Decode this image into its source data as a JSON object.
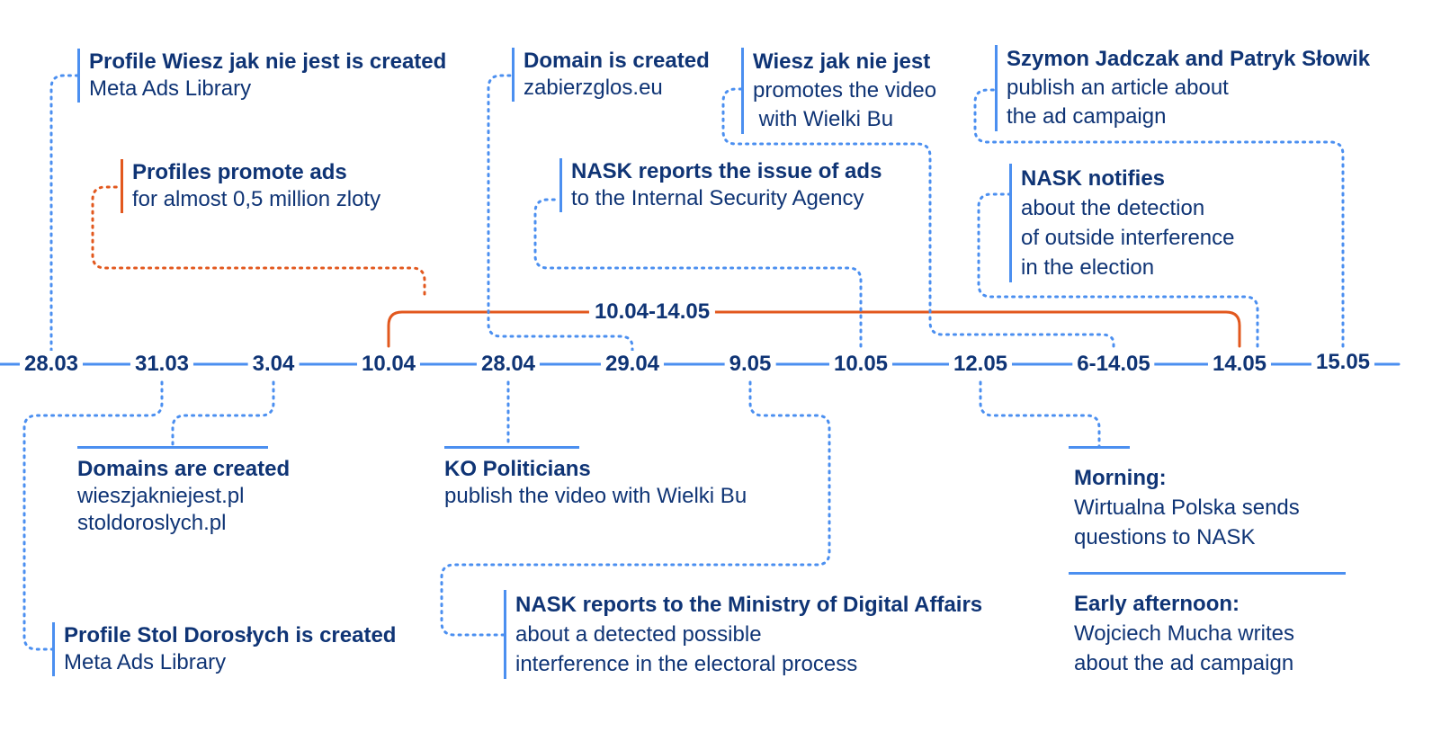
{
  "colors": {
    "navy": "#0f3475",
    "blue": "#4b8ff0",
    "orange": "#e2581e"
  },
  "timeline": {
    "range_label": "10.04-14.05",
    "dates": [
      "28.03",
      "31.03",
      "3.04",
      "10.04",
      "28.04",
      "29.04",
      "9.05",
      "10.05",
      "12.05",
      "6-14.05",
      "14.05",
      "15.05"
    ]
  },
  "events": {
    "profile_wiesz": {
      "title": "Profile Wiesz jak nie jest is created",
      "lines": [
        "Meta Ads Library"
      ]
    },
    "profiles_ads": {
      "title": "Profiles promote ads",
      "lines": [
        "for almost 0,5 million zloty"
      ]
    },
    "domain_created": {
      "title": "Domain is created",
      "lines": [
        "zabierzglos.eu"
      ]
    },
    "wiesz_video": {
      "title": "Wiesz jak nie jest",
      "lines": [
        "promotes the video",
        " with Wielki Bu"
      ]
    },
    "szymon": {
      "title": "Szymon Jadczak and Patryk Słowik",
      "lines": [
        "publish an article about",
        "the ad campaign"
      ]
    },
    "nask_isa": {
      "title": "NASK reports the issue of ads",
      "lines": [
        "to the Internal Security Agency"
      ]
    },
    "nask_notifies": {
      "title": "NASK notifies",
      "lines": [
        "about the detection",
        "of outside interference",
        "in the election"
      ]
    },
    "domains_created": {
      "title": "Domains are created",
      "lines": [
        "wieszjakniejest.pl",
        "stoldoroslych.pl"
      ]
    },
    "profile_stol": {
      "title": "Profile Stol Dorosłych is created",
      "lines": [
        "Meta Ads Library"
      ]
    },
    "ko_politicians": {
      "title": "KO Politicians",
      "lines": [
        "publish the video with Wielki Bu"
      ]
    },
    "nask_ministry": {
      "title": "NASK reports to the Ministry of Digital Affairs",
      "lines": [
        "about a detected possible",
        "interference in the electoral process"
      ]
    },
    "morning": {
      "title": "Morning:",
      "lines": [
        "Wirtualna Polska sends",
        "questions to NASK"
      ]
    },
    "afternoon": {
      "title": "Early afternoon:",
      "lines": [
        "Wojciech Mucha writes",
        "about the ad campaign"
      ]
    }
  }
}
